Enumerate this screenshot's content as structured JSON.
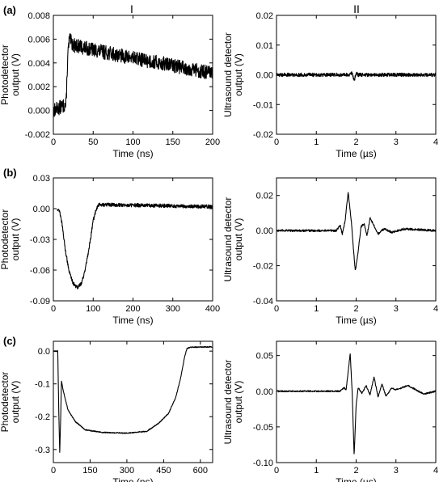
{
  "columns": [
    "I",
    "II"
  ],
  "rows": [
    "(a)",
    "(b)",
    "(c)"
  ],
  "chart_data": [
    {
      "id": "a-I",
      "type": "line",
      "xlabel": "Time (ns)",
      "ylabel": [
        "Photodetector",
        "output (V)"
      ],
      "xlim": [
        0,
        200
      ],
      "ylim": [
        -0.002,
        0.008
      ],
      "xticks": [
        0,
        50,
        100,
        150,
        200
      ],
      "xticklabels": [
        "0",
        "50",
        "100",
        "150",
        "200"
      ],
      "yticks": [
        -0.002,
        0.0,
        0.002,
        0.004,
        0.006,
        0.008
      ],
      "yticklabels": [
        "-0.002",
        "0.000",
        "0.002",
        "0.004",
        "0.006",
        "0.008"
      ],
      "noise": 0.0006,
      "series": [
        {
          "points": [
            [
              0,
              0.0
            ],
            [
              16,
              0.0005
            ],
            [
              18,
              0.0045
            ],
            [
              20,
              0.006
            ],
            [
              25,
              0.0055
            ],
            [
              50,
              0.0051
            ],
            [
              100,
              0.0044
            ],
            [
              150,
              0.0038
            ],
            [
              200,
              0.0031
            ]
          ]
        }
      ]
    },
    {
      "id": "a-II",
      "type": "line",
      "xlabel": "Time (µs)",
      "ylabel": [
        "Ultrasound detector",
        "output (V)"
      ],
      "xlim": [
        0,
        4
      ],
      "ylim": [
        -0.02,
        0.02
      ],
      "xticks": [
        0,
        1,
        2,
        3,
        4
      ],
      "xticklabels": [
        "0",
        "1",
        "2",
        "3",
        "4"
      ],
      "yticks": [
        -0.02,
        -0.01,
        0.0,
        0.01,
        0.02
      ],
      "yticklabels": [
        "-0.02",
        "-0.01",
        "0.00",
        "0.01",
        "0.02"
      ],
      "noise": 0.0006,
      "series": [
        {
          "points": [
            [
              0,
              0.0
            ],
            [
              1.85,
              0.0
            ],
            [
              1.9,
              0.0008
            ],
            [
              1.95,
              -0.002
            ],
            [
              2.0,
              0.0005
            ],
            [
              2.05,
              0.0
            ],
            [
              4,
              0.0
            ]
          ]
        }
      ]
    },
    {
      "id": "b-I",
      "type": "line",
      "xlabel": "Time (ns)",
      "ylabel": [
        "Photodetector",
        "output (V)"
      ],
      "xlim": [
        0,
        400
      ],
      "ylim": [
        -0.09,
        0.03
      ],
      "xticks": [
        0,
        100,
        200,
        300,
        400
      ],
      "xticklabels": [
        "0",
        "100",
        "200",
        "300",
        "400"
      ],
      "yticks": [
        -0.09,
        -0.06,
        -0.03,
        0.0,
        0.03
      ],
      "yticklabels": [
        "-0.09",
        "-0.06",
        "-0.03",
        "0.00",
        "0.03"
      ],
      "noise": 0.0018,
      "series": [
        {
          "points": [
            [
              10,
              0.0
            ],
            [
              15,
              -0.002
            ],
            [
              20,
              -0.01
            ],
            [
              25,
              -0.025
            ],
            [
              30,
              -0.04
            ],
            [
              40,
              -0.062
            ],
            [
              50,
              -0.073
            ],
            [
              60,
              -0.077
            ],
            [
              70,
              -0.073
            ],
            [
              80,
              -0.06
            ],
            [
              90,
              -0.038
            ],
            [
              100,
              -0.012
            ],
            [
              108,
              0.0
            ],
            [
              115,
              0.004
            ],
            [
              400,
              0.002
            ]
          ]
        }
      ]
    },
    {
      "id": "b-II",
      "type": "line",
      "xlabel": "Time (µs)",
      "ylabel": [
        "Ultrasound detector",
        "output (V)"
      ],
      "xlim": [
        0,
        4
      ],
      "ylim": [
        -0.04,
        0.03
      ],
      "xticks": [
        0,
        1,
        2,
        3,
        4
      ],
      "xticklabels": [
        "0",
        "1",
        "2",
        "3",
        "4"
      ],
      "yticks": [
        -0.04,
        -0.02,
        0.0,
        0.02
      ],
      "yticklabels": [
        "-0.04",
        "-0.02",
        "0.00",
        "0.02"
      ],
      "noise": 0.0006,
      "series": [
        {
          "points": [
            [
              0,
              0.0
            ],
            [
              1.5,
              0.0
            ],
            [
              1.6,
              0.003
            ],
            [
              1.65,
              -0.002
            ],
            [
              1.72,
              0.005
            ],
            [
              1.8,
              0.022
            ],
            [
              1.88,
              0.005
            ],
            [
              1.93,
              -0.01
            ],
            [
              1.98,
              -0.023
            ],
            [
              2.05,
              -0.012
            ],
            [
              2.12,
              0.002
            ],
            [
              2.2,
              0.004
            ],
            [
              2.27,
              -0.003
            ],
            [
              2.35,
              0.007
            ],
            [
              2.43,
              0.004
            ],
            [
              2.55,
              -0.002
            ],
            [
              2.7,
              0.001
            ],
            [
              2.9,
              -0.001
            ],
            [
              3.2,
              0.001
            ],
            [
              4,
              0.0
            ]
          ]
        }
      ]
    },
    {
      "id": "c-I",
      "type": "line",
      "xlabel": "Time (ns)",
      "ylabel": [
        "Photodetector",
        "output (V)"
      ],
      "xlim": [
        0,
        650
      ],
      "ylim": [
        -0.34,
        0.03
      ],
      "xticks": [
        0,
        150,
        300,
        450,
        600
      ],
      "xticklabels": [
        "0",
        "150",
        "300",
        "450",
        "600"
      ],
      "yticks": [
        -0.3,
        -0.2,
        -0.1,
        0.0
      ],
      "yticklabels": [
        "-0.3",
        "-0.2",
        "-0.1",
        "0.0"
      ],
      "noise": 0.0015,
      "series": [
        {
          "points": [
            [
              0,
              0.0
            ],
            [
              18,
              0.0
            ],
            [
              22,
              -0.18
            ],
            [
              26,
              -0.31
            ],
            [
              30,
              -0.2
            ],
            [
              33,
              -0.09
            ],
            [
              40,
              -0.12
            ],
            [
              60,
              -0.18
            ],
            [
              90,
              -0.215
            ],
            [
              130,
              -0.24
            ],
            [
              200,
              -0.248
            ],
            [
              300,
              -0.25
            ],
            [
              380,
              -0.245
            ],
            [
              430,
              -0.22
            ],
            [
              470,
              -0.19
            ],
            [
              500,
              -0.14
            ],
            [
              520,
              -0.08
            ],
            [
              535,
              -0.02
            ],
            [
              545,
              0.008
            ],
            [
              560,
              0.012
            ],
            [
              650,
              0.013
            ]
          ]
        }
      ]
    },
    {
      "id": "c-II",
      "type": "line",
      "xlabel": "Time (µs)",
      "ylabel": [
        "Ultrasound detector",
        "output (V)"
      ],
      "xlim": [
        0,
        4
      ],
      "ylim": [
        -0.1,
        0.07
      ],
      "xticks": [
        0,
        1,
        2,
        3,
        4
      ],
      "xticklabels": [
        "0",
        "1",
        "2",
        "3",
        "4"
      ],
      "yticks": [
        -0.1,
        -0.05,
        0.0,
        0.05
      ],
      "yticklabels": [
        "-0.10",
        "-0.05",
        "0.00",
        "0.05"
      ],
      "noise": 0.001,
      "series": [
        {
          "points": [
            [
              0,
              0.0
            ],
            [
              1.6,
              0.0
            ],
            [
              1.7,
              0.005
            ],
            [
              1.75,
              0.002
            ],
            [
              1.85,
              0.053
            ],
            [
              1.9,
              0.0
            ],
            [
              1.95,
              -0.09
            ],
            [
              2.0,
              -0.02
            ],
            [
              2.05,
              0.005
            ],
            [
              2.15,
              -0.003
            ],
            [
              2.25,
              0.008
            ],
            [
              2.35,
              -0.005
            ],
            [
              2.45,
              0.02
            ],
            [
              2.55,
              -0.008
            ],
            [
              2.65,
              0.01
            ],
            [
              2.75,
              -0.007
            ],
            [
              2.9,
              0.005
            ],
            [
              3.0,
              0.002
            ],
            [
              3.3,
              0.008
            ],
            [
              3.5,
              0.002
            ],
            [
              3.7,
              -0.004
            ],
            [
              4,
              0.0
            ]
          ]
        }
      ]
    }
  ]
}
